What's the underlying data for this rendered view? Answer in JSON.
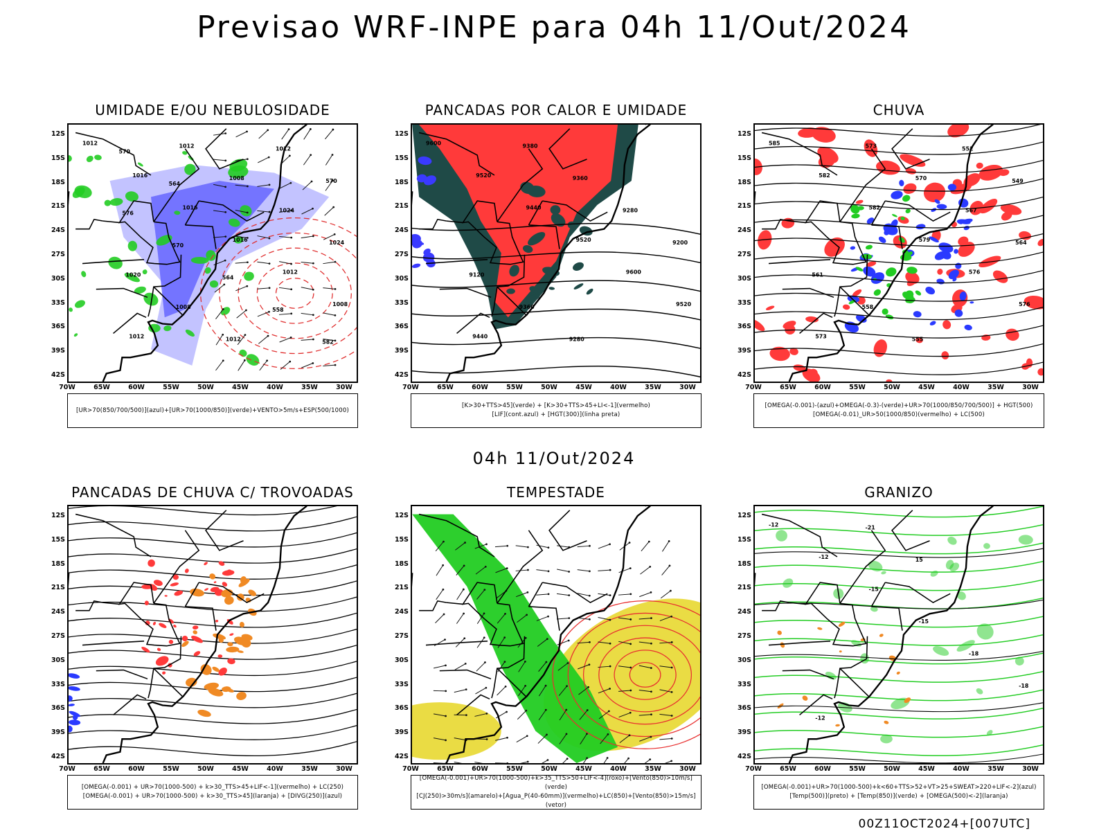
{
  "header": {
    "title": "Previsao WRF-INPE  para 04h 11/Out/2024",
    "mid_timestamp": "04h 11/Out/2024",
    "run_stamp": "00Z11OCT2024+[007UTC]"
  },
  "axes": {
    "lat_labels": [
      "12S",
      "15S",
      "18S",
      "21S",
      "24S",
      "27S",
      "30S",
      "33S",
      "36S",
      "39S",
      "42S"
    ],
    "lon_labels": [
      "70W",
      "65W",
      "60W",
      "55W",
      "50W",
      "45W",
      "40W",
      "35W",
      "30W"
    ],
    "lon_range": [
      -70,
      -28
    ],
    "lat_range": [
      -42,
      -10
    ]
  },
  "colors": {
    "blue_fill": "#6b6bff",
    "light_blue": "#b8b8ff",
    "green": "#22cc22",
    "red": "#ff3a3a",
    "dark_teal": "#1f4a47",
    "yellow": "#e8d830",
    "orange": "#f08a24",
    "coast": "#000000"
  },
  "chart_data": [
    {
      "type": "heatmap",
      "title": "UMIDADE E/OU NEBULOSIDADE",
      "legend_lines": [
        "[UR>70(850/700/500)](azul)+[UR>70(1000/850)](verde)+VENTO>5m/s+ESP(500/1000)"
      ],
      "contour_labels": [
        "1012",
        "1016",
        "1016",
        "1016",
        "1012",
        "1008",
        "1012",
        "1012",
        "1008",
        "1024",
        "1024",
        "1020",
        "1008",
        "1012",
        "1012",
        "570",
        "576",
        "570",
        "564",
        "558",
        "582",
        "570",
        "564"
      ]
    },
    {
      "type": "heatmap",
      "title": "PANCADAS POR CALOR E UMIDADE",
      "legend_lines": [
        "[K>30+TTS>45](verde) + [K>30+TTS>45+LI<-1](vermelho)",
        "[LIF](cont.azul) + [HGT(300)](linha preta)"
      ],
      "contour_labels": [
        "9600",
        "9520",
        "9440",
        "9520",
        "9600",
        "9520",
        "9440",
        "9380",
        "9360",
        "9280",
        "9200",
        "9120",
        "9360",
        "9280"
      ]
    },
    {
      "type": "heatmap",
      "title": "CHUVA",
      "legend_lines": [
        "[OMEGA(-0.001)-(azul)+OMEGA(-0.3)-(verde)+UR>70(1000/850/700/500)] + HGT(500)",
        "[OMEGA(-0.01)_UR>50(1000/850)(vermelho) + LC(500)"
      ],
      "contour_labels": [
        "585",
        "582",
        "582",
        "579",
        "576",
        "576",
        "573",
        "573",
        "570",
        "567",
        "564",
        "561",
        "558",
        "555",
        "552",
        "549"
      ]
    },
    {
      "type": "heatmap",
      "title": "PANCADAS DE CHUVA C/ TROVOADAS",
      "legend_lines": [
        "[OMEGA(-0.001) + UR>70(1000-500) + k>30_TTS>45+LIF<-1](vermelho) + LC(250)",
        "[OMEGA(-0.001) + UR>70(1000-500) + k>30_TTS>45](laranja) + [DIVG(250)](azul)"
      ],
      "contour_labels": []
    },
    {
      "type": "heatmap",
      "title": "TEMPESTADE",
      "legend_lines": [
        "[OMEGA(-0.001)+UR>70(1000-500)+k>35_TTS>50+LIF<-4](roxo)+[Vento(850)>10m/s](verde)",
        "[CJ(250)>30m/s](amarelo)+[Agua_P(40-60mm)](vermelho)+LC(850)+[Vento(850)>15m/s](vetor)"
      ],
      "contour_labels": []
    },
    {
      "type": "heatmap",
      "title": "GRANIZO",
      "legend_lines": [
        "[OMEGA(-0.001)+UR>70(1000-500)+k<60+TTS>52+VT>25+SWEAT>220+LIF<-2](azul)",
        "[Temp(500)](preto) + [Temp(850)](verde) + [OMEGA(500)<-2](laranja)"
      ],
      "contour_labels": [
        "-12",
        "-12",
        "-15",
        "-15",
        "-18",
        "-18",
        "-12",
        "-21",
        "15"
      ]
    }
  ]
}
